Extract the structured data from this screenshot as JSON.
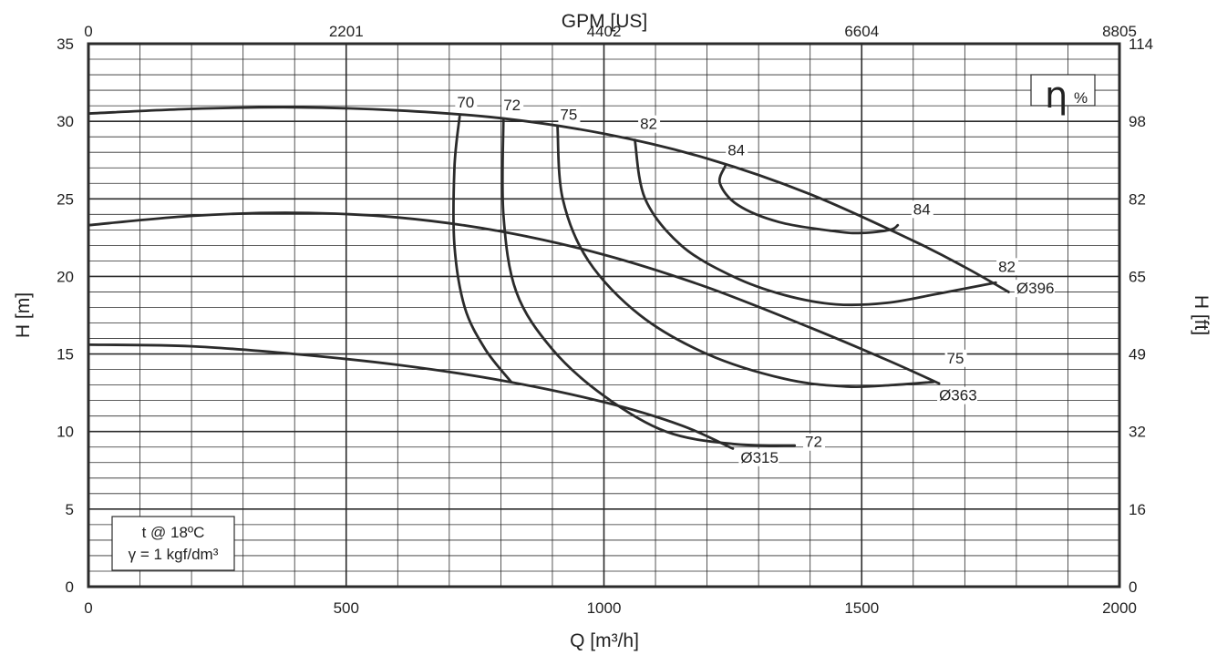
{
  "chart_data": {
    "type": "line",
    "title": "",
    "xlabel_bottom": "Q [m³/h]",
    "xlabel_top": "GPM [US]",
    "ylabel_left": "H [m]",
    "ylabel_right": "H [ft]",
    "xlim": [
      0,
      2000
    ],
    "ylim": [
      0,
      35
    ],
    "x_ticks_bottom": [
      "0",
      "500",
      "1000",
      "1500",
      "2000"
    ],
    "x_ticks_top": [
      "0",
      "2201",
      "4402",
      "6604",
      "8805"
    ],
    "y_ticks_left": [
      "0",
      "5",
      "10",
      "15",
      "20",
      "25",
      "30",
      "35"
    ],
    "y_ticks_right": [
      "0",
      "16",
      "32",
      "49",
      "65",
      "82",
      "98",
      "114"
    ],
    "grid": true,
    "efficiency_symbol": "η",
    "efficiency_unit": "%",
    "conditions": [
      "t @ 18ºC",
      "γ = 1 kgf/dm³"
    ],
    "series": [
      {
        "name": "Ø396",
        "points": [
          [
            0,
            30.5
          ],
          [
            200,
            30.8
          ],
          [
            400,
            30.9
          ],
          [
            600,
            30.7
          ],
          [
            800,
            30.2
          ],
          [
            1000,
            29.2
          ],
          [
            1200,
            27.6
          ],
          [
            1400,
            25.3
          ],
          [
            1600,
            22.3
          ],
          [
            1700,
            20.6
          ],
          [
            1785,
            19.0
          ]
        ]
      },
      {
        "name": "Ø363",
        "points": [
          [
            0,
            23.3
          ],
          [
            200,
            23.9
          ],
          [
            400,
            24.1
          ],
          [
            600,
            23.8
          ],
          [
            800,
            22.9
          ],
          [
            1000,
            21.4
          ],
          [
            1200,
            19.3
          ],
          [
            1400,
            16.7
          ],
          [
            1550,
            14.6
          ],
          [
            1650,
            13.1
          ]
        ]
      },
      {
        "name": "Ø315",
        "points": [
          [
            0,
            15.6
          ],
          [
            200,
            15.5
          ],
          [
            400,
            15.0
          ],
          [
            600,
            14.3
          ],
          [
            800,
            13.3
          ],
          [
            1000,
            11.9
          ],
          [
            1150,
            10.4
          ],
          [
            1250,
            8.9
          ]
        ]
      }
    ],
    "efficiency_curves": [
      {
        "label": "70",
        "points": [
          [
            720,
            30.3
          ],
          [
            710,
            27.0
          ],
          [
            710,
            22.0
          ],
          [
            730,
            18.0
          ],
          [
            770,
            15.3
          ],
          [
            820,
            13.2
          ]
        ]
      },
      {
        "label": "72",
        "points": [
          [
            805,
            30.1
          ],
          [
            805,
            24.0
          ],
          [
            830,
            19.0
          ],
          [
            900,
            15.3
          ],
          [
            1000,
            12.3
          ],
          [
            1120,
            10.0
          ],
          [
            1250,
            9.2
          ],
          [
            1370,
            9.1
          ]
        ]
      },
      {
        "label": "75",
        "points": [
          [
            910,
            29.6
          ],
          [
            920,
            25.0
          ],
          [
            970,
            21.0
          ],
          [
            1070,
            17.5
          ],
          [
            1200,
            15.0
          ],
          [
            1350,
            13.4
          ],
          [
            1470,
            12.9
          ],
          [
            1560,
            13.0
          ],
          [
            1640,
            13.2
          ]
        ]
      },
      {
        "label": "82",
        "points": [
          [
            1060,
            28.8
          ],
          [
            1080,
            25.0
          ],
          [
            1150,
            22.0
          ],
          [
            1250,
            20.0
          ],
          [
            1350,
            18.8
          ],
          [
            1450,
            18.2
          ],
          [
            1550,
            18.3
          ],
          [
            1650,
            18.9
          ],
          [
            1760,
            19.6
          ]
        ]
      },
      {
        "label": "84",
        "points": [
          [
            1235,
            27.1
          ],
          [
            1225,
            26.0
          ],
          [
            1260,
            24.6
          ],
          [
            1340,
            23.5
          ],
          [
            1450,
            22.9
          ],
          [
            1500,
            22.8
          ],
          [
            1555,
            23.0
          ],
          [
            1570,
            23.3
          ]
        ]
      }
    ],
    "labels": [
      {
        "text": "70",
        "at": [
          715,
          30.9
        ]
      },
      {
        "text": "72",
        "at": [
          805,
          30.7
        ]
      },
      {
        "text": "75",
        "at": [
          915,
          30.1
        ]
      },
      {
        "text": "82",
        "at": [
          1070,
          29.5
        ]
      },
      {
        "text": "84",
        "at": [
          1240,
          27.8
        ]
      },
      {
        "text": "84",
        "at": [
          1600,
          24.0
        ]
      },
      {
        "text": "82",
        "at": [
          1765,
          20.3
        ]
      },
      {
        "text": "Ø396",
        "at": [
          1800,
          18.9
        ]
      },
      {
        "text": "75",
        "at": [
          1665,
          14.4
        ]
      },
      {
        "text": "Ø363",
        "at": [
          1650,
          12.0
        ]
      },
      {
        "text": "72",
        "at": [
          1390,
          9.0
        ]
      },
      {
        "text": "Ø315",
        "at": [
          1265,
          8.0
        ]
      }
    ]
  }
}
